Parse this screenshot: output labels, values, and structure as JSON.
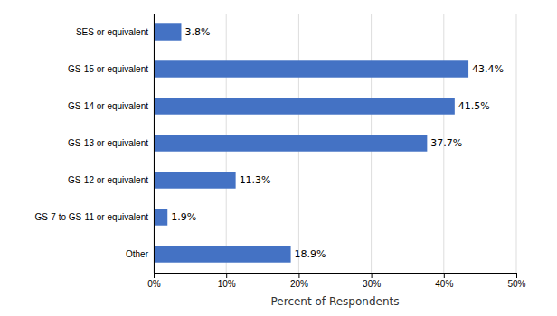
{
  "chart_data": {
    "type": "bar",
    "orientation": "horizontal",
    "categories": [
      "SES or equivalent",
      "GS-15 or equivalent",
      "GS-14 or equivalent",
      "GS-13 or equivalent",
      "GS-12 or equivalent",
      "GS-7 to GS-11 or equivalent",
      "Other"
    ],
    "values": [
      3.8,
      43.4,
      41.5,
      37.7,
      11.3,
      1.9,
      18.9
    ],
    "value_labels": [
      "3.8%",
      "43.4%",
      "41.5%",
      "37.7%",
      "11.3%",
      "1.9%",
      "18.9%"
    ],
    "data_labels": true,
    "color": "#4472C4",
    "xlabel": "Percent of Respondents",
    "xlim": [
      0,
      50
    ],
    "xticks": [
      {
        "value": 0,
        "label": "0%"
      },
      {
        "value": 10,
        "label": "10%"
      },
      {
        "value": 20,
        "label": "20%"
      },
      {
        "value": 30,
        "label": "30%"
      },
      {
        "value": 40,
        "label": "40%"
      },
      {
        "value": 50,
        "label": "50%"
      }
    ],
    "grid": true
  }
}
